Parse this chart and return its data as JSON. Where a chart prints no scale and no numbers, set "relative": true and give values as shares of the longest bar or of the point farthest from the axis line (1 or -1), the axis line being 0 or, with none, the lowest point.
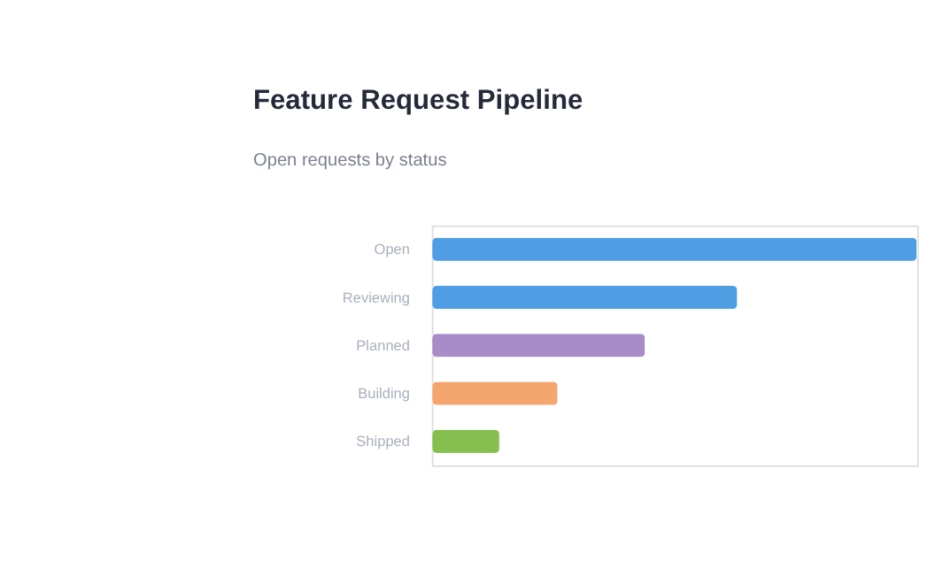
{
  "chart_data": {
    "type": "bar",
    "orientation": "horizontal",
    "relative": true,
    "title": "Feature Request Pipeline",
    "subtitle": "Open requests by status",
    "categories": [
      "Open",
      "Reviewing",
      "Planned",
      "Building",
      "Shipped"
    ],
    "values": [
      1,
      0.63,
      0.44,
      0.26,
      0.14
    ],
    "colors": [
      "#4f9de3",
      "#4f9de3",
      "#a88bc9",
      "#f4a66e",
      "#86bf4f"
    ],
    "grid": false,
    "legend": false
  }
}
